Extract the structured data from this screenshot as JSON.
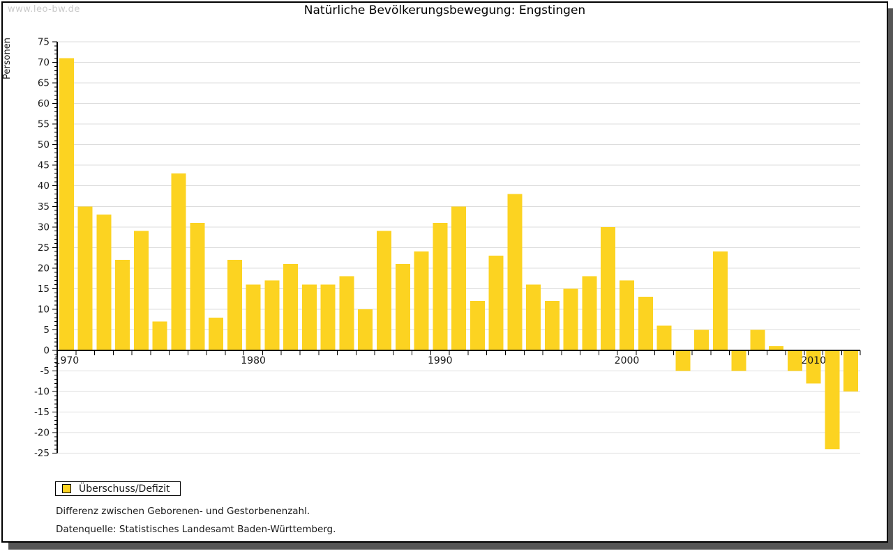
{
  "page": {
    "watermark": "www.leo-bw.de",
    "title": "Natürliche Bevölkerungsbewegung: Engstingen"
  },
  "chart_data": {
    "type": "bar",
    "title": "Natürliche Bevölkerungsbewegung: Engstingen",
    "xlabel": "",
    "ylabel": "Personen",
    "ylim": [
      -25,
      75
    ],
    "ytick_step": 5,
    "grid": true,
    "legend_position": "bottom-left",
    "bar_color": "#FCD321",
    "gridline_color": "#dddddd",
    "axis_color": "#000000",
    "x": [
      1970,
      1971,
      1972,
      1973,
      1974,
      1975,
      1976,
      1977,
      1978,
      1979,
      1980,
      1981,
      1982,
      1983,
      1984,
      1985,
      1986,
      1987,
      1988,
      1989,
      1990,
      1991,
      1992,
      1993,
      1994,
      1995,
      1996,
      1997,
      1998,
      1999,
      2000,
      2001,
      2002,
      2003,
      2004,
      2005,
      2006,
      2007,
      2008,
      2009,
      2010,
      2011,
      2012
    ],
    "xtick_labels": [
      "1970",
      "1980",
      "1990",
      "2000",
      "2010"
    ],
    "series": [
      {
        "name": "Überschuss/Defizit",
        "values": [
          71,
          35,
          33,
          22,
          29,
          7,
          43,
          31,
          8,
          22,
          16,
          17,
          21,
          16,
          16,
          18,
          10,
          29,
          21,
          24,
          31,
          35,
          12,
          23,
          38,
          16,
          12,
          15,
          18,
          30,
          17,
          13,
          6,
          -5,
          5,
          24,
          -5,
          5,
          1,
          -5,
          -8,
          -24,
          -10
        ]
      }
    ]
  },
  "legend": {
    "label": "Überschuss/Defizit",
    "swatch_color": "#FCD321"
  },
  "footnotes": {
    "line1": "Differenz zwischen Geborenen- und Gestorbenenzahl.",
    "line2": "Datenquelle: Statistisches Landesamt Baden-Württemberg."
  }
}
